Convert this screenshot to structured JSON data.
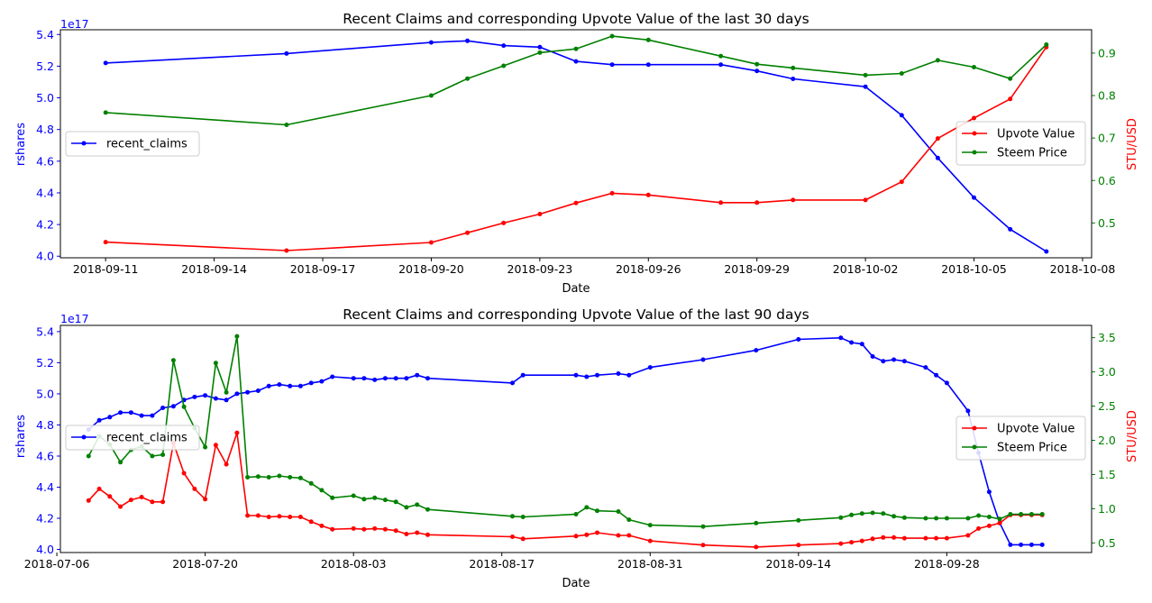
{
  "chart_data": [
    {
      "type": "line",
      "title": "Recent Claims and corresponding Upvote Value of the last 30 days",
      "xlabel": "Date",
      "ylabel_left": "rshares",
      "ylabel_right": "STU/USD",
      "left_axis_offset_label": "1e17",
      "left_axis_color": "#0000ff",
      "right_axis_color": "#ff0000",
      "right_tick_color": "#008000",
      "x_ticks": [
        "2018-09-11",
        "2018-09-14",
        "2018-09-17",
        "2018-09-20",
        "2018-09-23",
        "2018-09-26",
        "2018-09-29",
        "2018-10-02",
        "2018-10-05",
        "2018-10-08"
      ],
      "x_range": [
        "2018-09-09T18:00",
        "2018-10-08T06:00"
      ],
      "ylim_left": [
        3.99,
        5.43
      ],
      "y_ticks_left": [
        "4.0",
        "4.2",
        "4.4",
        "4.6",
        "4.8",
        "5.0",
        "5.2",
        "5.4"
      ],
      "ylim_right": [
        0.418,
        0.955
      ],
      "y_ticks_right": [
        "0.5",
        "0.6",
        "0.7",
        "0.8",
        "0.9"
      ],
      "legend_left": {
        "position": "center-left",
        "entries": [
          "recent_claims"
        ]
      },
      "legend_right": {
        "position": "center-right",
        "entries": [
          "Upvote Value",
          "Steem Price"
        ]
      },
      "series": [
        {
          "name": "recent_claims",
          "axis": "left",
          "color": "#0000ff",
          "x": [
            "2018-09-11",
            "2018-09-16",
            "2018-09-20",
            "2018-09-21",
            "2018-09-22",
            "2018-09-23",
            "2018-09-24",
            "2018-09-25",
            "2018-09-26",
            "2018-09-28",
            "2018-09-29",
            "2018-09-30",
            "2018-10-02",
            "2018-10-03",
            "2018-10-04",
            "2018-10-05",
            "2018-10-06",
            "2018-10-07"
          ],
          "values": [
            5.22,
            5.28,
            5.35,
            5.36,
            5.33,
            5.32,
            5.23,
            5.21,
            5.21,
            5.21,
            5.17,
            5.12,
            5.07,
            4.89,
            4.62,
            4.37,
            4.17,
            4.03
          ]
        },
        {
          "name": "Upvote Value",
          "axis": "right",
          "color": "#ff0000",
          "x": [
            "2018-09-11",
            "2018-09-16",
            "2018-09-20",
            "2018-09-21",
            "2018-09-22",
            "2018-09-23",
            "2018-09-24",
            "2018-09-25",
            "2018-09-26",
            "2018-09-28",
            "2018-09-29",
            "2018-09-30",
            "2018-10-02",
            "2018-10-03",
            "2018-10-04",
            "2018-10-05",
            "2018-10-06",
            "2018-10-07"
          ],
          "values": [
            0.455,
            0.435,
            0.454,
            0.477,
            0.5,
            0.521,
            0.547,
            0.57,
            0.566,
            0.548,
            0.548,
            0.554,
            0.554,
            0.597,
            0.699,
            0.747,
            0.792,
            0.914
          ]
        },
        {
          "name": "Steem Price",
          "axis": "right",
          "color": "#008000",
          "x": [
            "2018-09-11",
            "2018-09-16",
            "2018-09-20",
            "2018-09-21",
            "2018-09-22",
            "2018-09-23",
            "2018-09-24",
            "2018-09-25",
            "2018-09-26",
            "2018-09-28",
            "2018-09-29",
            "2018-09-30",
            "2018-10-02",
            "2018-10-03",
            "2018-10-04",
            "2018-10-05",
            "2018-10-06",
            "2018-10-07"
          ],
          "values": [
            0.76,
            0.731,
            0.8,
            0.84,
            0.87,
            0.901,
            0.91,
            0.94,
            0.931,
            0.893,
            0.874,
            0.865,
            0.848,
            0.852,
            0.883,
            0.867,
            0.84,
            0.92
          ]
        }
      ]
    },
    {
      "type": "line",
      "title": "Recent Claims and corresponding Upvote Value of the last 90 days",
      "xlabel": "Date",
      "ylabel_left": "rshares",
      "ylabel_right": "STU/USD",
      "left_axis_offset_label": "1e17",
      "left_axis_color": "#0000ff",
      "right_axis_color": "#ff0000",
      "right_tick_color": "#008000",
      "x_ticks": [
        "2018-07-06",
        "2018-07-20",
        "2018-08-03",
        "2018-08-17",
        "2018-08-31",
        "2018-09-14",
        "2018-09-28"
      ],
      "x_range": [
        "2018-07-06T08:00",
        "2018-10-11T16:00"
      ],
      "ylim_left": [
        3.98,
        5.44
      ],
      "y_ticks_left": [
        "4.0",
        "4.2",
        "4.4",
        "4.6",
        "4.8",
        "5.0",
        "5.2",
        "5.4"
      ],
      "ylim_right": [
        0.36,
        3.68
      ],
      "y_ticks_right": [
        "0.5",
        "1.0",
        "1.5",
        "2.0",
        "2.5",
        "3.0",
        "3.5"
      ],
      "legend_left": {
        "position": "center-left",
        "entries": [
          "recent_claims"
        ]
      },
      "legend_right": {
        "position": "center-right",
        "entries": [
          "Upvote Value",
          "Steem Price"
        ]
      },
      "series": [
        {
          "name": "recent_claims",
          "axis": "left",
          "color": "#0000ff",
          "x": [
            "2018-07-09",
            "2018-07-10",
            "2018-07-11",
            "2018-07-12",
            "2018-07-13",
            "2018-07-14",
            "2018-07-15",
            "2018-07-16",
            "2018-07-17",
            "2018-07-18",
            "2018-07-19",
            "2018-07-20",
            "2018-07-21",
            "2018-07-22",
            "2018-07-23",
            "2018-07-24",
            "2018-07-25",
            "2018-07-26",
            "2018-07-27",
            "2018-07-28",
            "2018-07-29",
            "2018-07-30",
            "2018-07-31",
            "2018-08-01",
            "2018-08-03",
            "2018-08-04",
            "2018-08-05",
            "2018-08-06",
            "2018-08-07",
            "2018-08-08",
            "2018-08-09",
            "2018-08-10",
            "2018-08-18",
            "2018-08-19",
            "2018-08-24",
            "2018-08-25",
            "2018-08-26",
            "2018-08-28",
            "2018-08-29",
            "2018-08-31",
            "2018-09-05",
            "2018-09-10",
            "2018-09-14",
            "2018-09-18",
            "2018-09-19",
            "2018-09-20",
            "2018-09-21",
            "2018-09-22",
            "2018-09-23",
            "2018-09-24",
            "2018-09-26",
            "2018-09-27",
            "2018-09-28",
            "2018-09-30",
            "2018-10-01",
            "2018-10-02",
            "2018-10-03",
            "2018-10-04",
            "2018-10-05",
            "2018-10-06",
            "2018-10-07"
          ],
          "values": [
            4.77,
            4.83,
            4.85,
            4.88,
            4.88,
            4.86,
            4.86,
            4.91,
            4.92,
            4.96,
            4.98,
            4.99,
            4.97,
            4.96,
            5.0,
            5.01,
            5.02,
            5.05,
            5.06,
            5.05,
            5.05,
            5.07,
            5.08,
            5.11,
            5.1,
            5.1,
            5.09,
            5.1,
            5.1,
            5.1,
            5.12,
            5.1,
            5.07,
            5.12,
            5.12,
            5.11,
            5.12,
            5.13,
            5.12,
            5.17,
            5.22,
            5.28,
            5.35,
            5.36,
            5.33,
            5.32,
            5.24,
            5.21,
            5.22,
            5.21,
            5.17,
            5.12,
            5.07,
            4.89,
            4.62,
            4.37,
            4.17,
            4.03,
            4.03,
            4.03,
            4.03
          ]
        },
        {
          "name": "Upvote Value",
          "axis": "right",
          "color": "#ff0000",
          "x": [
            "2018-07-09",
            "2018-07-10",
            "2018-07-11",
            "2018-07-12",
            "2018-07-13",
            "2018-07-14",
            "2018-07-15",
            "2018-07-16",
            "2018-07-17",
            "2018-07-18",
            "2018-07-19",
            "2018-07-20",
            "2018-07-21",
            "2018-07-22",
            "2018-07-23",
            "2018-07-24",
            "2018-07-25",
            "2018-07-26",
            "2018-07-27",
            "2018-07-28",
            "2018-07-29",
            "2018-07-30",
            "2018-07-31",
            "2018-08-01",
            "2018-08-03",
            "2018-08-04",
            "2018-08-05",
            "2018-08-06",
            "2018-08-07",
            "2018-08-08",
            "2018-08-09",
            "2018-08-10",
            "2018-08-18",
            "2018-08-19",
            "2018-08-24",
            "2018-08-25",
            "2018-08-26",
            "2018-08-28",
            "2018-08-29",
            "2018-08-31",
            "2018-09-05",
            "2018-09-10",
            "2018-09-14",
            "2018-09-18",
            "2018-09-19",
            "2018-09-20",
            "2018-09-21",
            "2018-09-22",
            "2018-09-23",
            "2018-09-24",
            "2018-09-26",
            "2018-09-27",
            "2018-09-28",
            "2018-09-30",
            "2018-10-01",
            "2018-10-02",
            "2018-10-03",
            "2018-10-04",
            "2018-10-05",
            "2018-10-06",
            "2018-10-07"
          ],
          "values": [
            1.12,
            1.29,
            1.18,
            1.03,
            1.13,
            1.17,
            1.1,
            1.1,
            1.96,
            1.52,
            1.29,
            1.14,
            1.93,
            1.65,
            2.11,
            0.9,
            0.9,
            0.88,
            0.89,
            0.88,
            0.88,
            0.81,
            0.75,
            0.7,
            0.71,
            0.7,
            0.71,
            0.7,
            0.68,
            0.63,
            0.65,
            0.62,
            0.59,
            0.56,
            0.6,
            0.62,
            0.65,
            0.61,
            0.61,
            0.53,
            0.47,
            0.44,
            0.47,
            0.49,
            0.51,
            0.53,
            0.56,
            0.58,
            0.58,
            0.57,
            0.57,
            0.57,
            0.57,
            0.61,
            0.71,
            0.75,
            0.79,
            0.91,
            0.91,
            0.91,
            0.91
          ]
        },
        {
          "name": "Steem Price",
          "axis": "right",
          "color": "#008000",
          "x": [
            "2018-07-09",
            "2018-07-10",
            "2018-07-11",
            "2018-07-12",
            "2018-07-13",
            "2018-07-14",
            "2018-07-15",
            "2018-07-16",
            "2018-07-17",
            "2018-07-18",
            "2018-07-19",
            "2018-07-20",
            "2018-07-21",
            "2018-07-22",
            "2018-07-23",
            "2018-07-24",
            "2018-07-25",
            "2018-07-26",
            "2018-07-27",
            "2018-07-28",
            "2018-07-29",
            "2018-07-30",
            "2018-07-31",
            "2018-08-01",
            "2018-08-03",
            "2018-08-04",
            "2018-08-05",
            "2018-08-06",
            "2018-08-07",
            "2018-08-08",
            "2018-08-09",
            "2018-08-10",
            "2018-08-18",
            "2018-08-19",
            "2018-08-24",
            "2018-08-25",
            "2018-08-26",
            "2018-08-28",
            "2018-08-29",
            "2018-08-31",
            "2018-09-05",
            "2018-09-10",
            "2018-09-14",
            "2018-09-18",
            "2018-09-19",
            "2018-09-20",
            "2018-09-21",
            "2018-09-22",
            "2018-09-23",
            "2018-09-24",
            "2018-09-26",
            "2018-09-27",
            "2018-09-28",
            "2018-09-30",
            "2018-10-01",
            "2018-10-02",
            "2018-10-03",
            "2018-10-04",
            "2018-10-05",
            "2018-10-06",
            "2018-10-07"
          ],
          "values": [
            1.77,
            2.06,
            1.94,
            1.68,
            1.86,
            1.91,
            1.77,
            1.79,
            3.17,
            2.49,
            2.18,
            1.9,
            3.13,
            2.7,
            3.52,
            1.46,
            1.47,
            1.46,
            1.48,
            1.46,
            1.45,
            1.37,
            1.27,
            1.16,
            1.19,
            1.14,
            1.16,
            1.13,
            1.1,
            1.02,
            1.06,
            0.99,
            0.89,
            0.88,
            0.92,
            1.02,
            0.97,
            0.96,
            0.84,
            0.76,
            0.74,
            0.79,
            0.83,
            0.87,
            0.91,
            0.93,
            0.94,
            0.93,
            0.89,
            0.87,
            0.86,
            0.86,
            0.86,
            0.86,
            0.9,
            0.88,
            0.85,
            0.92,
            0.92,
            0.92,
            0.92
          ]
        }
      ]
    }
  ]
}
